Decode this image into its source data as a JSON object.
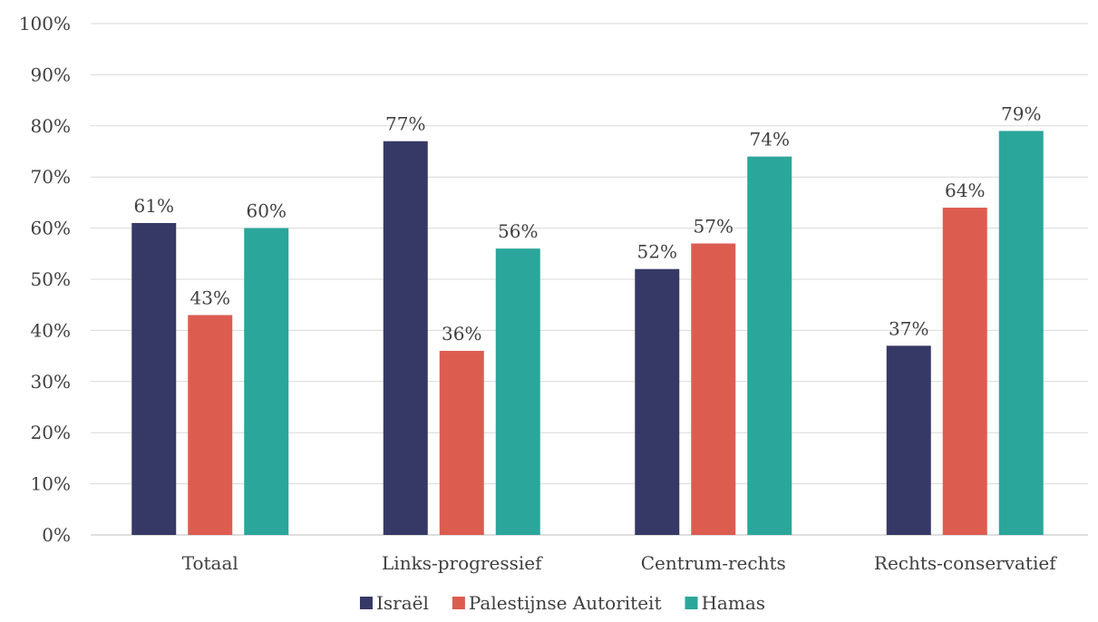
{
  "chart_data": {
    "type": "bar",
    "title": "",
    "xlabel": "",
    "ylabel": "",
    "ylim": [
      0,
      100
    ],
    "yticks": [
      "0%",
      "10%",
      "20%",
      "30%",
      "40%",
      "50%",
      "60%",
      "70%",
      "80%",
      "90%",
      "100%"
    ],
    "categories": [
      "Totaal",
      "Links-progressief",
      "Centrum-rechts",
      "Rechts-conservatief"
    ],
    "series": [
      {
        "name": "Israël",
        "color": "#363965",
        "values": [
          61,
          77,
          52,
          37
        ]
      },
      {
        "name": "Palestijnse Autoriteit",
        "color": "#dd5c50",
        "values": [
          43,
          36,
          57,
          64
        ]
      },
      {
        "name": "Hamas",
        "color": "#2aa69a",
        "values": [
          60,
          56,
          74,
          79
        ]
      }
    ],
    "data_labels": [
      [
        "61%",
        "77%",
        "52%",
        "37%"
      ],
      [
        "43%",
        "36%",
        "57%",
        "64%"
      ],
      [
        "60%",
        "56%",
        "74%",
        "79%"
      ]
    ],
    "grid": true,
    "legend_position": "bottom"
  }
}
